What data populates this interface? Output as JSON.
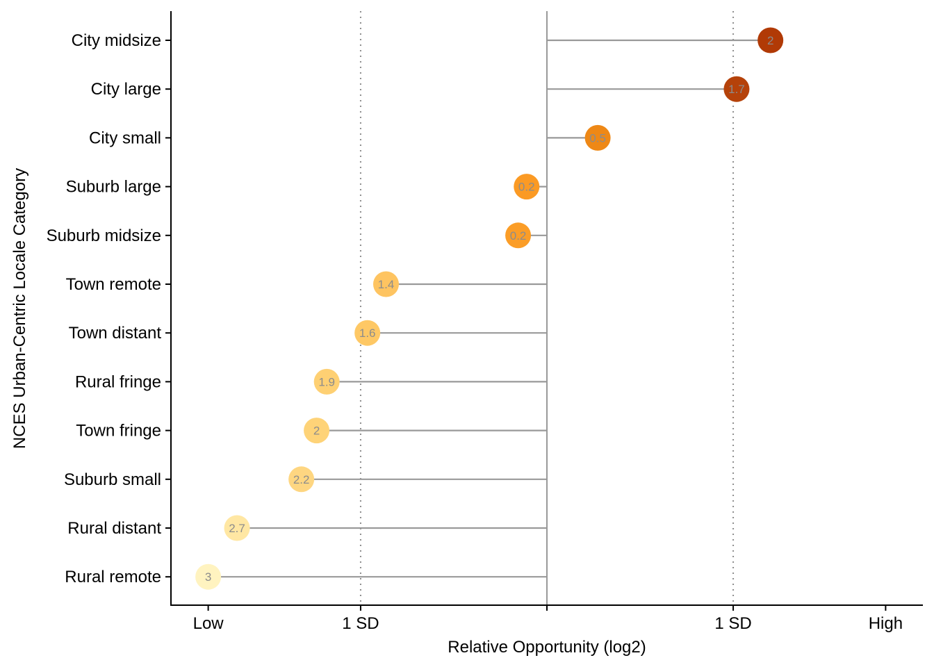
{
  "chart_data": {
    "type": "lollipop",
    "xlabel": "Relative Opportunity (log2)",
    "ylabel": "NCES Urban-Centric Locale Category",
    "xlim": [
      -2.22,
      2.22
    ],
    "x_ticks": [
      {
        "value": -2,
        "label": "Low"
      },
      {
        "value": -1.1,
        "label": "1 SD"
      },
      {
        "value": 0,
        "label": ""
      },
      {
        "value": 1.1,
        "label": "1 SD"
      },
      {
        "value": 2,
        "label": "High"
      }
    ],
    "reference_lines": [
      {
        "value": -1.1,
        "style": "dotted"
      },
      {
        "value": 1.1,
        "style": "dotted"
      },
      {
        "value": 0,
        "style": "solid"
      }
    ],
    "grid": false,
    "legend": "none",
    "categories": [
      {
        "name": "City midsize",
        "value": 1.32,
        "label": "2",
        "color": "#b13a06"
      },
      {
        "name": "City large",
        "value": 1.12,
        "label": "1.7",
        "color": "#b5420a"
      },
      {
        "name": "City small",
        "value": 0.3,
        "label": "0.5",
        "color": "#ee8816"
      },
      {
        "name": "Suburb large",
        "value": -0.12,
        "label": "0.2",
        "color": "#fb9a24"
      },
      {
        "name": "Suburb midsize",
        "value": -0.17,
        "label": "0.2",
        "color": "#fb9d27"
      },
      {
        "name": "Town remote",
        "value": -0.95,
        "label": "1.4",
        "color": "#fec461"
      },
      {
        "name": "Town distant",
        "value": -1.06,
        "label": "1.6",
        "color": "#fec865"
      },
      {
        "name": "Rural fringe",
        "value": -1.3,
        "label": "1.9",
        "color": "#fed073"
      },
      {
        "name": "Town fringe",
        "value": -1.36,
        "label": "2",
        "color": "#fed378"
      },
      {
        "name": "Suburb small",
        "value": -1.45,
        "label": "2.2",
        "color": "#fed681"
      },
      {
        "name": "Rural distant",
        "value": -1.83,
        "label": "2.7",
        "color": "#ffe7a3"
      },
      {
        "name": "Rural remote",
        "value": -2.0,
        "label": "3",
        "color": "#fff3c0"
      }
    ]
  }
}
